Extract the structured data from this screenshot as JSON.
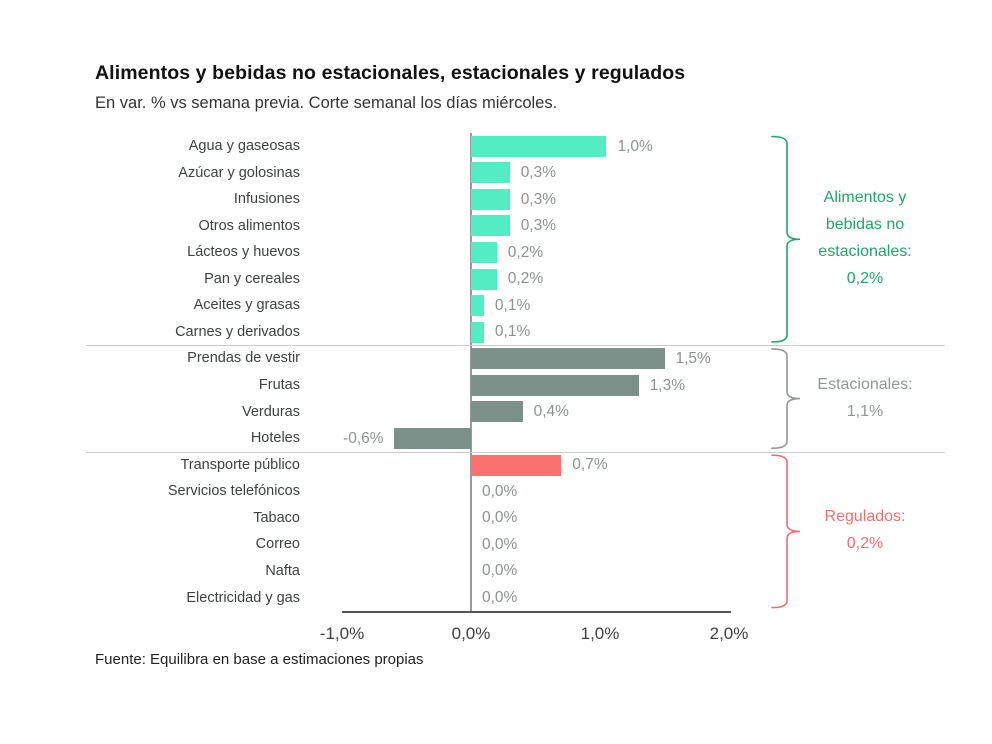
{
  "header": {
    "title": "Alimentos y bebidas no estacionales, estacionales y regulados",
    "subtitle": "En var. % vs semana previa. Corte semanal los días miércoles."
  },
  "footer": {
    "source": "Fuente: Equilibra en base a estimaciones propias"
  },
  "colors": {
    "non_seasonal_bar": "#53edc3",
    "seasonal_bar": "#7b9089",
    "regulated_bar": "#fb7170",
    "non_seasonal_text": "#1fa568",
    "seasonal_text": "#8f9795",
    "regulated_text": "#ef6f6d",
    "zero_line": "#999999",
    "x_axis_line": "#565656",
    "separator_line": "#cbcbcb",
    "value_label": "#8b9190",
    "category_label": "#3d4241"
  },
  "chart_data": {
    "type": "bar",
    "orientation": "horizontal",
    "title": "Alimentos y bebidas no estacionales, estacionales y regulados",
    "subtitle": "En var. % vs semana previa. Corte semanal los días miércoles.",
    "unit": "%",
    "x_axis": {
      "ticks": [
        "-1,0%",
        "0,0%",
        "1,0%",
        "2,0%"
      ],
      "tick_values": [
        -1.0,
        0.0,
        1.0,
        2.0
      ],
      "range": [
        -1.0,
        2.0
      ],
      "grid": false
    },
    "legend_position": "right-brackets",
    "sections": [
      {
        "name": "Alimentos y bebidas no estacionales",
        "aggregate_label": "0,2%",
        "annotation_lines": [
          "Alimentos y",
          "bebidas no",
          "estacionales:",
          "0,2%"
        ],
        "bar_color": "#53edc3",
        "text_color": "#1fa568",
        "items": [
          {
            "label": "Agua y gaseosas",
            "value": 1.05,
            "value_label": "1,0%"
          },
          {
            "label": "Azúcar y golosinas",
            "value": 0.3,
            "value_label": "0,3%"
          },
          {
            "label": "Infusiones",
            "value": 0.3,
            "value_label": "0,3%"
          },
          {
            "label": "Otros alimentos",
            "value": 0.3,
            "value_label": "0,3%"
          },
          {
            "label": "Lácteos y huevos",
            "value": 0.2,
            "value_label": "0,2%"
          },
          {
            "label": "Pan y cereales",
            "value": 0.2,
            "value_label": "0,2%"
          },
          {
            "label": "Aceites y grasas",
            "value": 0.1,
            "value_label": "0,1%"
          },
          {
            "label": "Carnes y derivados",
            "value": 0.1,
            "value_label": "0,1%"
          }
        ]
      },
      {
        "name": "Estacionales",
        "aggregate_label": "1,1%",
        "annotation_lines": [
          "Estacionales:",
          "1,1%"
        ],
        "bar_color": "#7b9089",
        "text_color": "#8f9795",
        "items": [
          {
            "label": "Prendas de vestir",
            "value": 1.5,
            "value_label": "1,5%"
          },
          {
            "label": "Frutas",
            "value": 1.3,
            "value_label": "1,3%"
          },
          {
            "label": "Verduras",
            "value": 0.4,
            "value_label": "0,4%"
          },
          {
            "label": "Hoteles",
            "value": -0.6,
            "value_label": "-0,6%"
          }
        ]
      },
      {
        "name": "Regulados",
        "aggregate_label": "0,2%",
        "annotation_lines": [
          "Regulados:",
          "0,2%"
        ],
        "bar_color": "#fb7170",
        "text_color": "#ef6f6d",
        "items": [
          {
            "label": "Transporte público",
            "value": 0.7,
            "value_label": "0,7%"
          },
          {
            "label": "Servicios telefónicos",
            "value": 0.0,
            "value_label": "0,0%"
          },
          {
            "label": "Tabaco",
            "value": 0.0,
            "value_label": "0,0%"
          },
          {
            "label": "Correo",
            "value": 0.0,
            "value_label": "0,0%"
          },
          {
            "label": "Nafta",
            "value": 0.0,
            "value_label": "0,0%"
          },
          {
            "label": "Electricidad y gas",
            "value": 0.0,
            "value_label": "0,0%"
          }
        ]
      }
    ]
  }
}
